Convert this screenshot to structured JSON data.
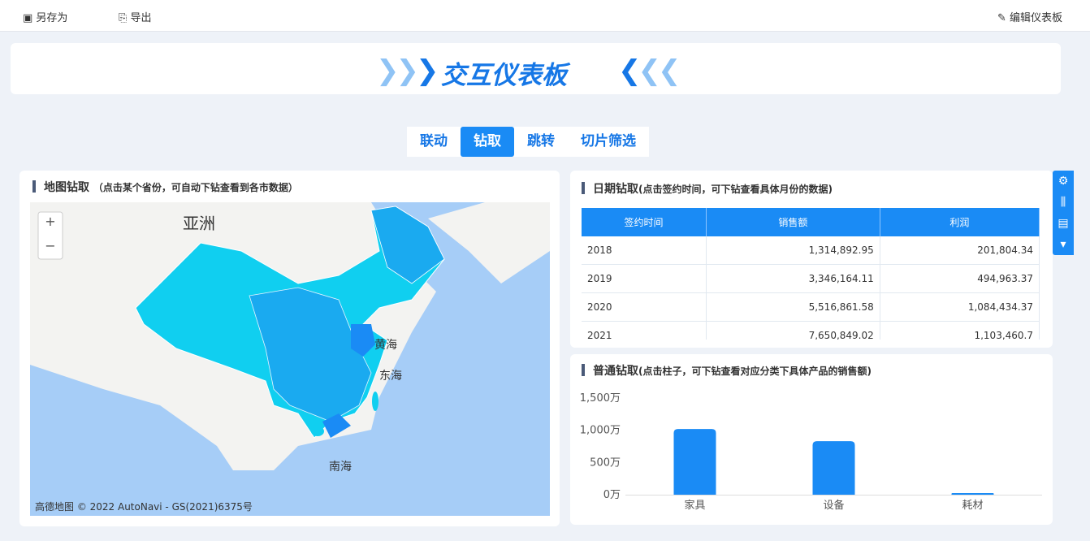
{
  "toolbar": {
    "save_as": "另存为",
    "export": "导出",
    "edit": "编辑仪表板"
  },
  "header": {
    "title": "交互仪表板"
  },
  "tabs": [
    "联动",
    "钻取",
    "跳转",
    "切片筛选"
  ],
  "map_panel": {
    "title": "地图钻取",
    "hint": "（点击某个省份，可自动下钻查看到各市数据）",
    "zoom_in": "+",
    "zoom_out": "−",
    "labels": [
      "亚洲",
      "黄海",
      "东海",
      "南海"
    ],
    "attribution": "高德地图 © 2022 AutoNavi - GS(2021)6375号"
  },
  "table_panel": {
    "title": "日期钻取",
    "hint": "(点击签约时间，可下钻查看具体月份的数据)",
    "table": {
      "columns": [
        "签约时间",
        "销售额",
        "利润"
      ],
      "rows": [
        [
          "2018",
          "1,314,892.95",
          "201,804.34"
        ],
        [
          "2019",
          "3,346,164.11",
          "494,963.37"
        ],
        [
          "2020",
          "5,516,861.58",
          "1,084,434.37"
        ],
        [
          "2021",
          "7,650,849.02",
          "1,103,460.7"
        ]
      ]
    }
  },
  "chart_data": {
    "type": "bar",
    "title": "普通钻取",
    "subtitle": "(点击柱子，可下钻查看对应分类下具体产品的销售额)",
    "categories": [
      "家具",
      "设备",
      "耗材"
    ],
    "values": [
      1020,
      830,
      25
    ],
    "color": "#1a8bf5",
    "ylim": [
      0,
      1500
    ],
    "yticks": [
      {
        "value": 0,
        "label": "0万"
      },
      {
        "value": 500,
        "label": "500万"
      },
      {
        "value": 1000,
        "label": "1,000万"
      },
      {
        "value": 1500,
        "label": "1,500万"
      }
    ]
  }
}
